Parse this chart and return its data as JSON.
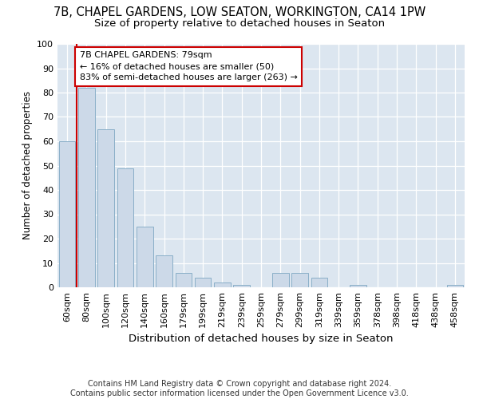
{
  "title1": "7B, CHAPEL GARDENS, LOW SEATON, WORKINGTON, CA14 1PW",
  "title2": "Size of property relative to detached houses in Seaton",
  "xlabel": "Distribution of detached houses by size in Seaton",
  "ylabel": "Number of detached properties",
  "categories": [
    "60sqm",
    "80sqm",
    "100sqm",
    "120sqm",
    "140sqm",
    "160sqm",
    "179sqm",
    "199sqm",
    "219sqm",
    "239sqm",
    "259sqm",
    "279sqm",
    "299sqm",
    "319sqm",
    "339sqm",
    "359sqm",
    "378sqm",
    "398sqm",
    "418sqm",
    "438sqm",
    "458sqm"
  ],
  "values": [
    60,
    82,
    65,
    49,
    25,
    13,
    6,
    4,
    2,
    1,
    0,
    6,
    6,
    4,
    0,
    1,
    0,
    0,
    0,
    0,
    1
  ],
  "bar_color": "#ccd9e8",
  "bar_edge_color": "#8aafc8",
  "annotation_text": "7B CHAPEL GARDENS: 79sqm\n← 16% of detached houses are smaller (50)\n83% of semi-detached houses are larger (263) →",
  "vline_color": "#cc0000",
  "box_color": "#cc0000",
  "ylim": [
    0,
    100
  ],
  "yticks": [
    0,
    10,
    20,
    30,
    40,
    50,
    60,
    70,
    80,
    90,
    100
  ],
  "background_color": "#dce6f0",
  "footer": "Contains HM Land Registry data © Crown copyright and database right 2024.\nContains public sector information licensed under the Open Government Licence v3.0.",
  "title1_fontsize": 10.5,
  "title2_fontsize": 9.5,
  "xlabel_fontsize": 9.5,
  "ylabel_fontsize": 8.5,
  "tick_fontsize": 8,
  "annot_fontsize": 8,
  "footer_fontsize": 7
}
